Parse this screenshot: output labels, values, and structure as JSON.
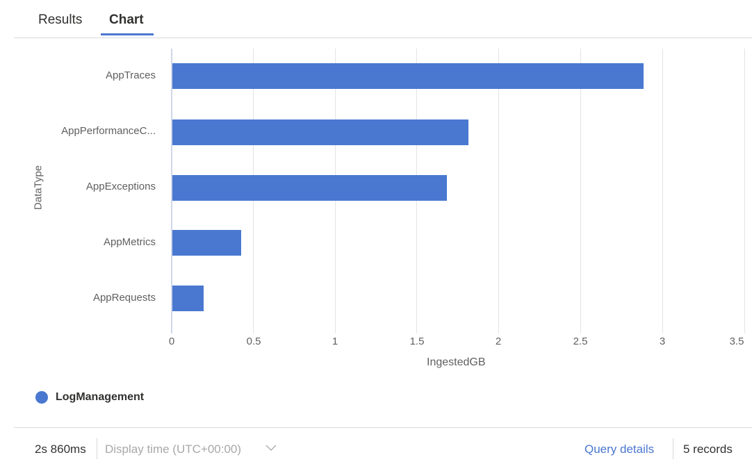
{
  "tabs": [
    {
      "label": "Results",
      "active": false
    },
    {
      "label": "Chart",
      "active": true
    }
  ],
  "colors": {
    "accent": "#4a76d0",
    "bar": "#4a78d0",
    "gridline": "#e3e3e8",
    "text_muted": "#5f5f5f"
  },
  "chart_data": {
    "type": "bar",
    "orientation": "horizontal",
    "title": "",
    "xlabel": "IngestedGB",
    "ylabel": "DataType",
    "categories": [
      "AppTraces",
      "AppPerformanceC...",
      "AppExceptions",
      "AppMetrics",
      "AppRequests"
    ],
    "series": [
      {
        "name": "LogManagement",
        "values": [
          2.88,
          1.81,
          1.68,
          0.42,
          0.19
        ],
        "color": "#4a78d0"
      }
    ],
    "xlim": [
      0,
      3.5
    ],
    "x_ticks": [
      "0",
      "0.5",
      "1",
      "1.5",
      "2",
      "2.5",
      "3",
      "3.5"
    ],
    "grid": true,
    "legend_position": "bottom-left"
  },
  "legend": {
    "label": "LogManagement"
  },
  "footer": {
    "elapsed": "2s 860ms",
    "display_time": "Display time (UTC+00:00)",
    "query_details": "Query details",
    "records": "5 records"
  }
}
